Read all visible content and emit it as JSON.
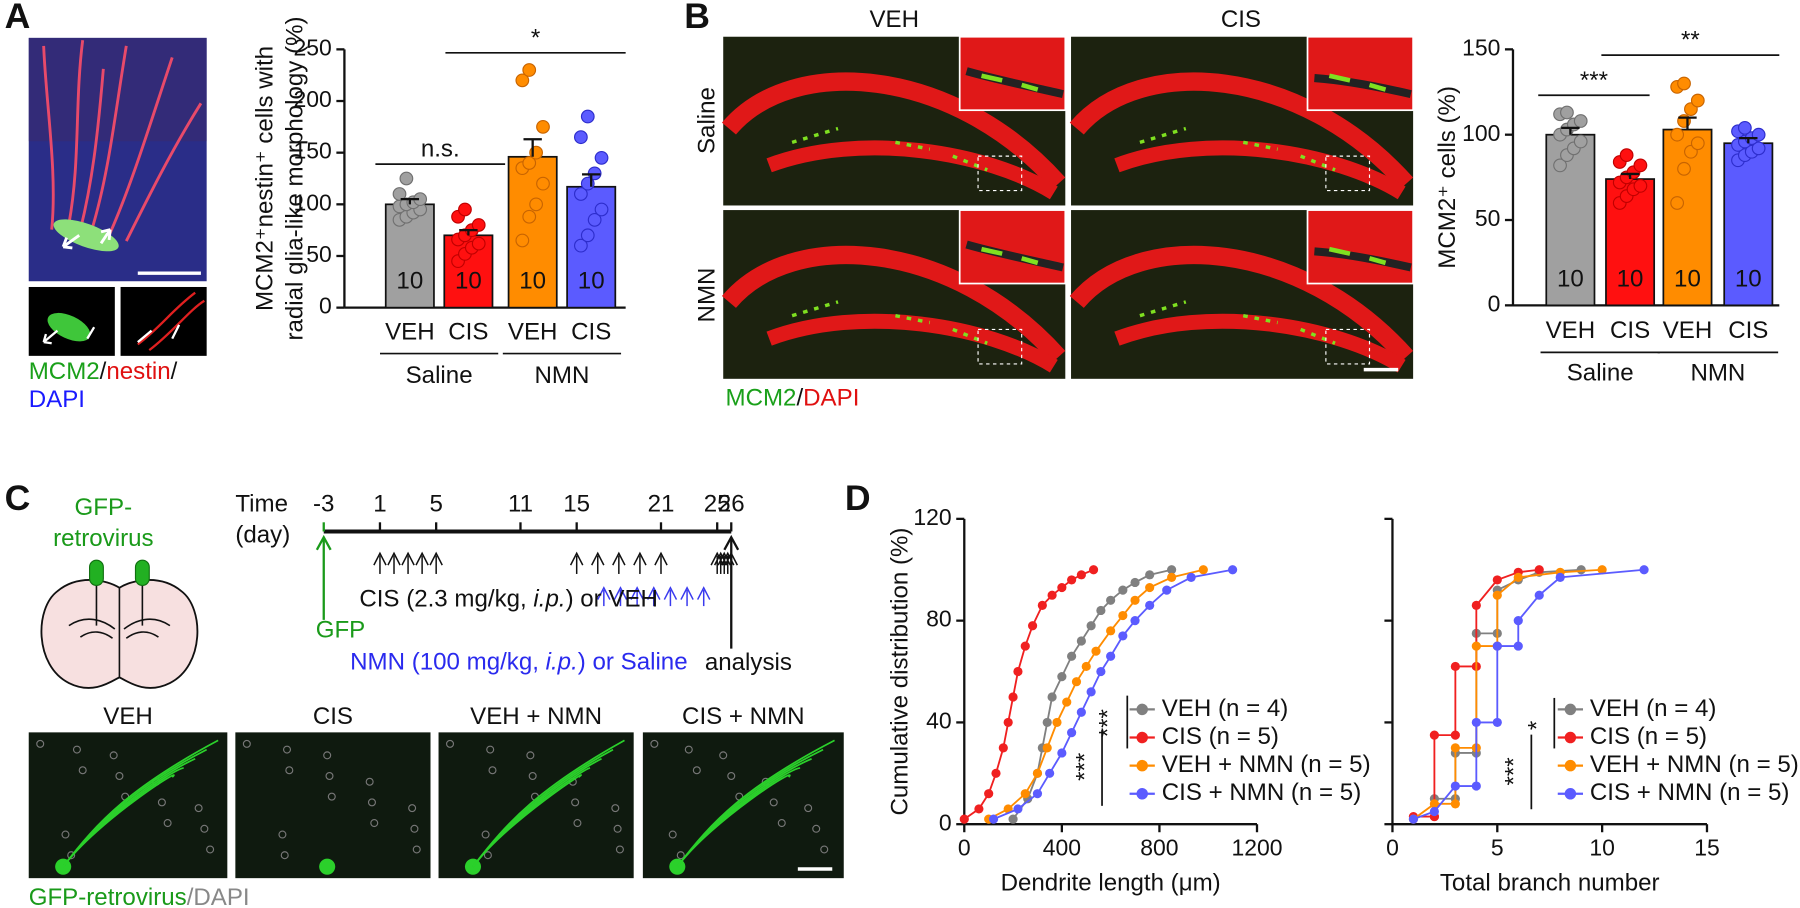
{
  "panel_labels": [
    "A",
    "B",
    "C",
    "D"
  ],
  "panel_a": {
    "stain": [
      "MCM2",
      "/",
      "nestin",
      "/"
    ],
    "stain2": "DAPI"
  },
  "panel_b": {
    "columns": [
      "VEH",
      "CIS"
    ],
    "rows": [
      "Saline",
      "NMN"
    ],
    "stain": [
      "MCM2",
      "/",
      "DAPI"
    ]
  },
  "panel_c": {
    "vector": [
      "GFP-",
      "retrovirus"
    ],
    "time_label": [
      "Time",
      "(day)"
    ],
    "days": [
      -3,
      1,
      5,
      11,
      15,
      21,
      25,
      26
    ],
    "cis_label": [
      "CIS (2.3 mg/kg, ",
      "i.p.",
      ") or VEH"
    ],
    "gfp": "GFP",
    "nmn_label": [
      "NMN (100 mg/kg, ",
      "i.p.",
      ") or Saline"
    ],
    "analysis": "analysis",
    "image_labels": [
      "VEH",
      "CIS",
      "VEH + NMN",
      "CIS + NMN"
    ],
    "stain": [
      "GFP-retrovirus",
      "/",
      "DAPI"
    ]
  },
  "chart_data": [
    {
      "type": "bar",
      "y_label": [
        "MCM2⁺nestin⁺ cells with",
        "radial glia-like morphology (%)"
      ],
      "categories": [
        "VEH",
        "CIS",
        "VEH",
        "CIS"
      ],
      "groups": [
        "Saline",
        "NMN"
      ],
      "values": [
        100,
        70,
        146,
        117
      ],
      "errors": [
        5,
        5,
        17,
        12
      ],
      "colors": [
        "#a0a0a0",
        "#ff1010",
        "#ff8c00",
        "#5b5bff"
      ],
      "points": [
        [
          85,
          88,
          92,
          95,
          98,
          100,
          102,
          105,
          110,
          125
        ],
        [
          45,
          52,
          58,
          62,
          66,
          70,
          75,
          80,
          88,
          95
        ],
        [
          65,
          88,
          100,
          120,
          135,
          140,
          150,
          175,
          220,
          230
        ],
        [
          60,
          70,
          85,
          95,
          110,
          120,
          130,
          145,
          165,
          185
        ]
      ],
      "n_labels": [
        10,
        10,
        10,
        10
      ],
      "annotations": [
        "n.s.",
        "*"
      ],
      "ylim": [
        0,
        250
      ],
      "yticks": [
        0,
        50,
        100,
        150,
        200,
        250
      ]
    },
    {
      "type": "bar",
      "y_label": [
        "MCM2⁺ cells (%)"
      ],
      "categories": [
        "VEH",
        "CIS",
        "VEH",
        "CIS"
      ],
      "groups": [
        "Saline",
        "NMN"
      ],
      "values": [
        100,
        74,
        103,
        95
      ],
      "errors": [
        4,
        3,
        7,
        3
      ],
      "colors": [
        "#a0a0a0",
        "#ff1010",
        "#ff8c00",
        "#5b5bff"
      ],
      "points": [
        [
          82,
          88,
          92,
          96,
          100,
          103,
          106,
          108,
          112,
          113
        ],
        [
          60,
          64,
          68,
          70,
          72,
          75,
          78,
          82,
          84,
          88
        ],
        [
          60,
          80,
          90,
          95,
          100,
          108,
          115,
          120,
          128,
          130
        ],
        [
          85,
          88,
          90,
          92,
          94,
          96,
          98,
          100,
          102,
          104
        ]
      ],
      "n_labels": [
        10,
        10,
        10,
        10
      ],
      "annotations": [
        "***",
        "**"
      ],
      "ylim": [
        0,
        150
      ],
      "yticks": [
        0,
        50,
        100,
        150
      ]
    },
    {
      "type": "line",
      "x_label": "Dendrite length (μm)",
      "y_label": "Cumulative distribution (%)",
      "xlim": [
        0,
        1200
      ],
      "xticks": [
        0,
        400,
        800,
        1200
      ],
      "ylim": [
        0,
        120
      ],
      "yticks": [
        0,
        40,
        80,
        120
      ],
      "series": [
        {
          "name": "VEH (n = 4)",
          "color": "#808080",
          "x": [
            200,
            260,
            300,
            320,
            340,
            360,
            400,
            440,
            480,
            520,
            560,
            600,
            650,
            700,
            760,
            850
          ],
          "values": [
            2,
            10,
            20,
            30,
            40,
            50,
            58,
            66,
            72,
            78,
            84,
            88,
            92,
            95,
            98,
            100
          ]
        },
        {
          "name": "CIS (n = 5)",
          "color": "#f02020",
          "x": [
            0,
            60,
            100,
            130,
            160,
            180,
            200,
            220,
            250,
            280,
            320,
            360,
            400,
            440,
            480,
            530
          ],
          "values": [
            2,
            6,
            12,
            20,
            30,
            40,
            50,
            60,
            70,
            78,
            86,
            90,
            93,
            96,
            98,
            100
          ]
        },
        {
          "name": "VEH + NMN (n = 5)",
          "color": "#ff8c00",
          "x": [
            100,
            180,
            250,
            300,
            340,
            380,
            420,
            460,
            500,
            540,
            600,
            650,
            700,
            760,
            850,
            980
          ],
          "values": [
            2,
            6,
            12,
            20,
            30,
            40,
            48,
            56,
            62,
            68,
            76,
            82,
            88,
            93,
            97,
            100
          ]
        },
        {
          "name": "CIS + NMN (n = 5)",
          "color": "#5b5bff",
          "x": [
            120,
            220,
            300,
            350,
            400,
            440,
            480,
            520,
            560,
            600,
            650,
            700,
            760,
            830,
            930,
            1100
          ],
          "values": [
            2,
            6,
            12,
            20,
            28,
            36,
            44,
            52,
            60,
            66,
            74,
            80,
            86,
            92,
            97,
            100
          ]
        }
      ],
      "annotations": [
        "***",
        "***"
      ]
    },
    {
      "type": "line",
      "x_label": "Total branch number",
      "xlim": [
        0,
        15
      ],
      "xticks": [
        0,
        5,
        10,
        15
      ],
      "ylim": [
        0,
        120
      ],
      "ytick_marks": [
        0,
        40,
        80,
        120
      ],
      "series": [
        {
          "name": "VEH (n = 4)",
          "color": "#808080",
          "x": [
            2,
            2,
            3,
            3,
            4,
            4,
            5,
            5,
            6,
            7,
            9
          ],
          "values": [
            3,
            10,
            10,
            28,
            28,
            75,
            75,
            92,
            96,
            99,
            100
          ]
        },
        {
          "name": "CIS (n = 5)",
          "color": "#f02020",
          "x": [
            1,
            2,
            2,
            3,
            3,
            4,
            4,
            5,
            6,
            7
          ],
          "values": [
            3,
            3,
            35,
            35,
            62,
            62,
            86,
            96,
            99,
            100
          ]
        },
        {
          "name": "VEH + NMN (n = 5)",
          "color": "#ff8c00",
          "x": [
            1,
            2,
            3,
            3,
            4,
            4,
            5,
            5,
            6,
            8,
            10
          ],
          "values": [
            2,
            8,
            8,
            30,
            30,
            70,
            70,
            90,
            97,
            99,
            100
          ]
        },
        {
          "name": "CIS + NMN (n = 5)",
          "color": "#5b5bff",
          "x": [
            1,
            2,
            3,
            4,
            4,
            5,
            5,
            6,
            6,
            7,
            8,
            12
          ],
          "values": [
            2,
            5,
            15,
            15,
            40,
            40,
            70,
            70,
            80,
            90,
            97,
            100
          ]
        }
      ],
      "annotations": [
        "*",
        "***"
      ]
    }
  ]
}
